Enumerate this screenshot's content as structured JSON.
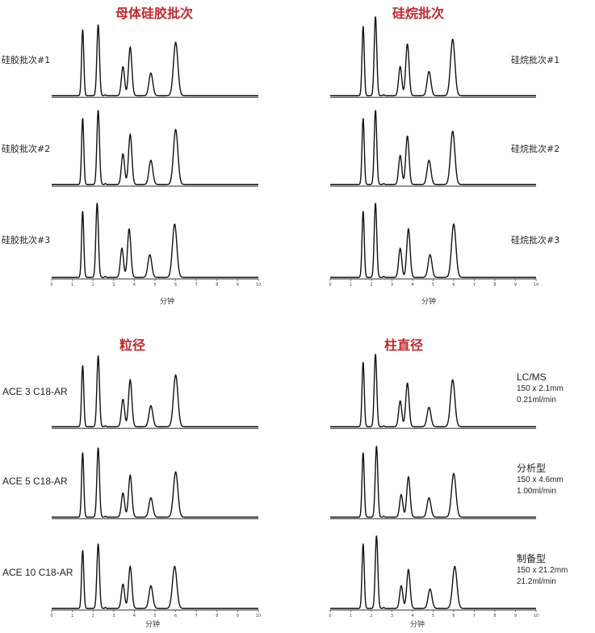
{
  "panels": {
    "top_left": {
      "title": "母体硅胶批次",
      "xlabel": "分钟",
      "rows": [
        {
          "label": "硅胶批次#1"
        },
        {
          "label": "硅胶批次#2"
        },
        {
          "label": "硅胶批次#3"
        }
      ]
    },
    "top_right": {
      "title": "硅烷批次",
      "xlabel": "分钟",
      "rows": [
        {
          "label": "硅烷批次#1"
        },
        {
          "label": "硅烷批次#2"
        },
        {
          "label": "硅烷批次#3"
        }
      ]
    },
    "bottom_left": {
      "title": "粒径",
      "xlabel": "分钟",
      "rows": [
        {
          "label": "ACE 3 C18-AR"
        },
        {
          "label": "ACE 5 C18-AR"
        },
        {
          "label": "ACE 10 C18-AR"
        }
      ]
    },
    "bottom_right": {
      "title": "柱直径",
      "xlabel": "分钟",
      "rows": [
        {
          "label": "LC/MS",
          "dims": "150 x 2.1mm",
          "flow": "0.21ml/min"
        },
        {
          "label": "分析型",
          "dims": "150 x 4.6mm",
          "flow": "1.00ml/min"
        },
        {
          "label": "制备型",
          "dims": "150 x 21.2mm",
          "flow": "21.2ml/min"
        }
      ]
    }
  },
  "chart_data": [
    {
      "type": "line",
      "title": "母体硅胶批次",
      "xlabel": "分钟",
      "xlim": [
        0,
        10
      ],
      "x_ticks": [
        "0",
        "1",
        "2",
        "3",
        "4",
        "5",
        "6",
        "7",
        "8",
        "9",
        "10"
      ],
      "series": [
        {
          "name": "硅胶批次#1",
          "peaks": [
            {
              "t": 1.5,
              "h": 0.82
            },
            {
              "t": 2.25,
              "h": 0.88
            },
            {
              "t": 3.45,
              "h": 0.36
            },
            {
              "t": 3.8,
              "h": 0.6
            },
            {
              "t": 4.8,
              "h": 0.28
            },
            {
              "t": 6.0,
              "h": 0.66
            }
          ]
        },
        {
          "name": "硅胶批次#2",
          "peaks": [
            {
              "t": 1.5,
              "h": 0.82
            },
            {
              "t": 2.25,
              "h": 0.92
            },
            {
              "t": 3.45,
              "h": 0.38
            },
            {
              "t": 3.8,
              "h": 0.62
            },
            {
              "t": 4.8,
              "h": 0.3
            },
            {
              "t": 6.0,
              "h": 0.68
            }
          ]
        },
        {
          "name": "硅胶批次#3",
          "peaks": [
            {
              "t": 1.5,
              "h": 0.82
            },
            {
              "t": 2.2,
              "h": 0.92
            },
            {
              "t": 3.4,
              "h": 0.36
            },
            {
              "t": 3.75,
              "h": 0.6
            },
            {
              "t": 4.75,
              "h": 0.28
            },
            {
              "t": 5.95,
              "h": 0.66
            }
          ]
        }
      ]
    },
    {
      "type": "line",
      "title": "硅烷批次",
      "xlabel": "分钟",
      "xlim": [
        0,
        10
      ],
      "x_ticks": [
        "0",
        "1",
        "2",
        "3",
        "4",
        "5",
        "6",
        "7",
        "8",
        "9",
        "10"
      ],
      "series": [
        {
          "name": "硅烷批次#1",
          "peaks": [
            {
              "t": 1.6,
              "h": 0.86
            },
            {
              "t": 2.2,
              "h": 0.98
            },
            {
              "t": 3.4,
              "h": 0.36
            },
            {
              "t": 3.75,
              "h": 0.64
            },
            {
              "t": 4.8,
              "h": 0.3
            },
            {
              "t": 5.95,
              "h": 0.7
            }
          ]
        },
        {
          "name": "硅烷批次#2",
          "peaks": [
            {
              "t": 1.6,
              "h": 0.82
            },
            {
              "t": 2.2,
              "h": 0.92
            },
            {
              "t": 3.4,
              "h": 0.36
            },
            {
              "t": 3.75,
              "h": 0.6
            },
            {
              "t": 4.8,
              "h": 0.3
            },
            {
              "t": 5.95,
              "h": 0.66
            }
          ]
        },
        {
          "name": "硅烷批次#3",
          "peaks": [
            {
              "t": 1.6,
              "h": 0.82
            },
            {
              "t": 2.2,
              "h": 0.92
            },
            {
              "t": 3.4,
              "h": 0.36
            },
            {
              "t": 3.8,
              "h": 0.6
            },
            {
              "t": 4.85,
              "h": 0.28
            },
            {
              "t": 6.0,
              "h": 0.66
            }
          ]
        }
      ]
    },
    {
      "type": "line",
      "title": "粒径",
      "xlabel": "分钟",
      "xlim": [
        0,
        10
      ],
      "x_ticks": [
        "0",
        "1",
        "2",
        "3",
        "4",
        "5",
        "6",
        "7",
        "8",
        "9",
        "10"
      ],
      "series": [
        {
          "name": "ACE 3 C18-AR",
          "peaks": [
            {
              "t": 1.5,
              "h": 0.76
            },
            {
              "t": 2.25,
              "h": 0.88
            },
            {
              "t": 3.45,
              "h": 0.34
            },
            {
              "t": 3.8,
              "h": 0.58
            },
            {
              "t": 4.8,
              "h": 0.26
            },
            {
              "t": 6.0,
              "h": 0.64
            }
          ]
        },
        {
          "name": "ACE 5 C18-AR",
          "peaks": [
            {
              "t": 1.5,
              "h": 0.8
            },
            {
              "t": 2.25,
              "h": 0.86
            },
            {
              "t": 3.45,
              "h": 0.3
            },
            {
              "t": 3.8,
              "h": 0.52
            },
            {
              "t": 4.8,
              "h": 0.24
            },
            {
              "t": 6.0,
              "h": 0.56
            }
          ]
        },
        {
          "name": "ACE 10 C18-AR",
          "peaks": [
            {
              "t": 1.5,
              "h": 0.72
            },
            {
              "t": 2.25,
              "h": 0.8
            },
            {
              "t": 3.45,
              "h": 0.3
            },
            {
              "t": 3.8,
              "h": 0.52
            },
            {
              "t": 4.8,
              "h": 0.28
            },
            {
              "t": 5.95,
              "h": 0.52
            }
          ]
        }
      ]
    },
    {
      "type": "line",
      "title": "柱直径",
      "xlabel": "分钟",
      "xlim": [
        0,
        10
      ],
      "x_ticks": [
        "0",
        "1",
        "2",
        "3",
        "4",
        "5",
        "6",
        "7",
        "8",
        "9",
        "10"
      ],
      "series": [
        {
          "name": "LC/MS",
          "peaks": [
            {
              "t": 1.6,
              "h": 0.8
            },
            {
              "t": 2.2,
              "h": 0.9
            },
            {
              "t": 3.4,
              "h": 0.32
            },
            {
              "t": 3.75,
              "h": 0.54
            },
            {
              "t": 4.8,
              "h": 0.24
            },
            {
              "t": 5.95,
              "h": 0.58
            }
          ]
        },
        {
          "name": "分析型",
          "peaks": [
            {
              "t": 1.6,
              "h": 0.8
            },
            {
              "t": 2.25,
              "h": 0.88
            },
            {
              "t": 3.45,
              "h": 0.28
            },
            {
              "t": 3.8,
              "h": 0.5
            },
            {
              "t": 4.8,
              "h": 0.24
            },
            {
              "t": 6.0,
              "h": 0.54
            }
          ]
        },
        {
          "name": "制备型",
          "peaks": [
            {
              "t": 1.6,
              "h": 0.8
            },
            {
              "t": 2.25,
              "h": 0.9
            },
            {
              "t": 3.45,
              "h": 0.28
            },
            {
              "t": 3.8,
              "h": 0.48
            },
            {
              "t": 4.85,
              "h": 0.24
            },
            {
              "t": 6.05,
              "h": 0.52
            }
          ]
        }
      ]
    }
  ],
  "colors": {
    "title": "#c0282d",
    "trace": "#111111",
    "axis": "#555555"
  }
}
